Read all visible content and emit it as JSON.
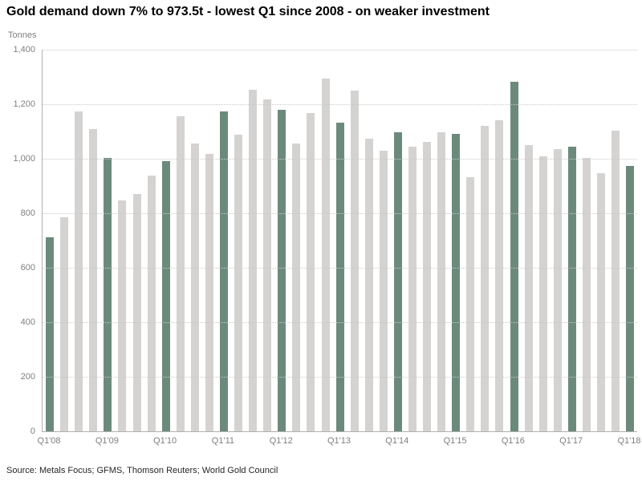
{
  "chart_data": {
    "type": "bar",
    "title": "Gold demand down 7% to 973.5t - lowest Q1 since 2008 - on weaker investment",
    "ylabel": "Tonnes",
    "ylim": [
      0,
      1400
    ],
    "grid": "horizontal-dotted",
    "legend": "none",
    "source": "Source: Metals Focus; GFMS, Thomson Reuters; World Gold Council",
    "categories": [
      "Q1'08",
      "Q2'08",
      "Q3'08",
      "Q4'08",
      "Q1'09",
      "Q2'09",
      "Q3'09",
      "Q4'09",
      "Q1'10",
      "Q2'10",
      "Q3'10",
      "Q4'10",
      "Q1'11",
      "Q2'11",
      "Q3'11",
      "Q4'11",
      "Q1'12",
      "Q2'12",
      "Q3'12",
      "Q4'12",
      "Q1'13",
      "Q2'13",
      "Q3'13",
      "Q4'13",
      "Q1'14",
      "Q2'14",
      "Q3'14",
      "Q4'14",
      "Q1'15",
      "Q2'15",
      "Q3'15",
      "Q4'15",
      "Q1'16",
      "Q2'16",
      "Q3'16",
      "Q4'16",
      "Q1'17",
      "Q2'17",
      "Q3'17",
      "Q4'17",
      "Q1'18"
    ],
    "values": [
      711,
      786,
      1175,
      1110,
      1002,
      846,
      872,
      938,
      990,
      1155,
      1056,
      1019,
      1173,
      1088,
      1254,
      1218,
      1180,
      1056,
      1168,
      1293,
      1133,
      1251,
      1074,
      1029,
      1098,
      1044,
      1062,
      1097,
      1091,
      931,
      1121,
      1141,
      1281,
      1050,
      1010,
      1034,
      1045,
      1004,
      947,
      1104,
      973.5
    ],
    "highlight_rule": "every Q1 bar (every 4th starting at index 0) is highlighted green",
    "highlight_every": 4,
    "x_tick_labels": [
      "Q1'08",
      "Q1'09",
      "Q1'10",
      "Q1'11",
      "Q1'12",
      "Q1'13",
      "Q1'14",
      "Q1'15",
      "Q1'16",
      "Q1'17",
      "Q1'18"
    ],
    "yticks": [
      {
        "v": 1400,
        "label": "1,400"
      },
      {
        "v": 1200,
        "label": "1,200"
      },
      {
        "v": 1000,
        "label": "1,000"
      },
      {
        "v": 800,
        "label": "800"
      },
      {
        "v": 600,
        "label": "600"
      },
      {
        "v": 400,
        "label": "400"
      },
      {
        "v": 200,
        "label": "200"
      },
      {
        "v": 0,
        "label": "0"
      }
    ],
    "colors": {
      "bar": "#d4d3d1",
      "highlight": "#6c8a7c",
      "gridline": "#c9c9c9",
      "axis": "#b0b0b0",
      "tick_label": "#7f7f7f",
      "title": "#000000",
      "source": "#262626"
    }
  }
}
